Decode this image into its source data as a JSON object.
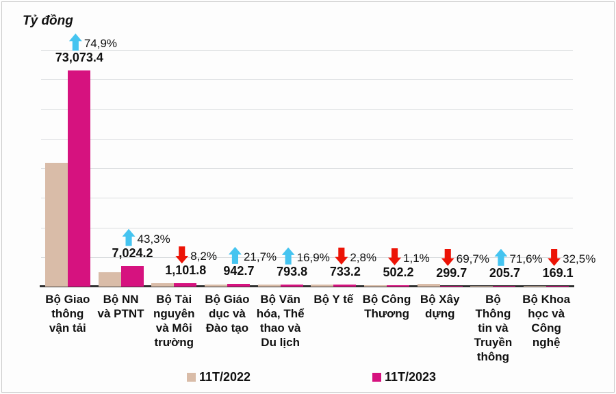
{
  "title": "Tỷ đồng",
  "legend": [
    {
      "label": "11T/2022",
      "color": "#d9bca8"
    },
    {
      "label": "11T/2023",
      "color": "#d6127f"
    }
  ],
  "colors": {
    "up_arrow": "#45c4f0",
    "down_arrow": "#ec1306",
    "gridline": "#d9dcde",
    "axis": "#2f2f2f",
    "text": "#111111",
    "background": "#fdfdfd",
    "border": "#c9c9c9"
  },
  "chart_data": {
    "type": "bar",
    "title": "",
    "ylabel": "Tỷ đồng",
    "xlabel": "",
    "ylim": [
      0,
      80000
    ],
    "gridline_step": 10000,
    "grid": true,
    "legend_position": "bottom",
    "categories": [
      "Bộ Giao thông vận tải",
      "Bộ NN và PTNT",
      "Bộ Tài nguyên và Môi trường",
      "Bộ Giáo dục và Đào tạo",
      "Bộ Văn hóa, Thể thao và Du lịch",
      "Bộ Y tế",
      "Bộ Công Thương",
      "Bộ Xây dựng",
      "Bộ Thông tin và Truyền thông",
      "Bộ Khoa học và Công nghệ"
    ],
    "category_lines": [
      [
        "Bộ Giao",
        "thông",
        "vận tải"
      ],
      [
        "Bộ NN",
        "và PTNT"
      ],
      [
        "Bộ Tài",
        "nguyên",
        "và Môi",
        "trường"
      ],
      [
        "Bộ Giáo",
        "dục và",
        "Đào tạo"
      ],
      [
        "Bộ Văn",
        "hóa, Thể",
        "thao và",
        "Du lịch"
      ],
      [
        "Bộ Y tế"
      ],
      [
        "Bộ Công",
        "Thương"
      ],
      [
        "Bộ Xây",
        "dựng"
      ],
      [
        "Bộ",
        "Thông",
        "tin và",
        "Truyền",
        "thông"
      ],
      [
        "Bộ Khoa",
        "học và",
        "Công",
        "nghệ"
      ]
    ],
    "series": [
      {
        "name": "11T/2022",
        "color": "#d9bca8",
        "estimated": true,
        "values": [
          41780,
          4902,
          1200,
          775,
          679,
          754,
          508,
          989,
          120,
          250
        ]
      },
      {
        "name": "11T/2023",
        "color": "#d6127f",
        "values": [
          73073.4,
          7024.2,
          1101.8,
          942.7,
          793.8,
          733.2,
          502.2,
          299.7,
          205.7,
          169.1
        ]
      }
    ],
    "value_labels": [
      "73,073.4",
      "7,024.2",
      "1,101.8",
      "942.7",
      "793.8",
      "733.2",
      "502.2",
      "299.7",
      "205.7",
      "169.1"
    ],
    "pct_changes": [
      {
        "direction": "up",
        "label": "74,9%"
      },
      {
        "direction": "up",
        "label": "43,3%"
      },
      {
        "direction": "down",
        "label": "8,2%"
      },
      {
        "direction": "up",
        "label": "21,7%"
      },
      {
        "direction": "up",
        "label": "16,9%"
      },
      {
        "direction": "down",
        "label": "2,8%"
      },
      {
        "direction": "down",
        "label": "1,1%"
      },
      {
        "direction": "down",
        "label": "69,7%"
      },
      {
        "direction": "up",
        "label": "71,6%"
      },
      {
        "direction": "down",
        "label": "32,5%"
      }
    ]
  }
}
